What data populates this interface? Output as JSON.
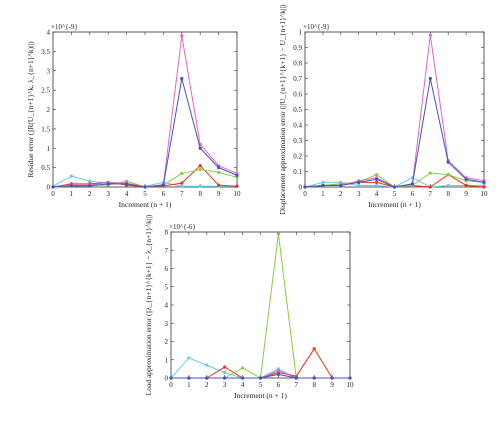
{
  "chart_data": [
    {
      "type": "line",
      "xlabel": "Increment (n + 1)",
      "ylabel": "Residue error (||R(U_{n+1}^k, λ_{n+1}^k)||)",
      "y_exponent": "×10^{-9}",
      "xlim": [
        0,
        10
      ],
      "ylim": [
        0,
        4
      ],
      "xticks": [
        "0",
        "1",
        "2",
        "3",
        "4",
        "5",
        "6",
        "7",
        "8",
        "9",
        "10"
      ],
      "yticks": [
        "0",
        "0.5",
        "1",
        "1.5",
        "2",
        "2.5",
        "3",
        "3.5",
        "4"
      ],
      "x": [
        0,
        1,
        2,
        3,
        4,
        5,
        6,
        7,
        8,
        9,
        10
      ],
      "series": [
        {
          "color": "#66ccee",
          "values": [
            0.02,
            0.28,
            0.15,
            0.1,
            0.08,
            0.02,
            0.12,
            0.02,
            0.02,
            0.02,
            0.02
          ]
        },
        {
          "color": "#ee3311",
          "values": [
            0.0,
            0.08,
            0.08,
            0.12,
            0.05,
            0.0,
            0.03,
            0.1,
            0.55,
            0.05,
            0.02
          ]
        },
        {
          "color": "#88cc44",
          "values": [
            0.0,
            0.02,
            0.05,
            0.05,
            0.15,
            0.0,
            0.05,
            0.35,
            0.45,
            0.38,
            0.25
          ]
        },
        {
          "color": "#dd66cc",
          "values": [
            0.0,
            0.05,
            0.05,
            0.12,
            0.1,
            0.0,
            0.06,
            3.9,
            1.1,
            0.55,
            0.35
          ]
        },
        {
          "color": "#4455bb",
          "values": [
            0.0,
            0.03,
            0.03,
            0.08,
            0.08,
            0.0,
            0.05,
            2.8,
            1.0,
            0.5,
            0.3
          ]
        }
      ]
    },
    {
      "type": "line",
      "xlabel": "Increment (n + 1)",
      "ylabel": "Displacement approximation error (||U_{n+1}^{k+1} − U_{n+1}^k||)",
      "y_exponent": "×10^{-9}",
      "xlim": [
        0,
        10
      ],
      "ylim": [
        0,
        1
      ],
      "xticks": [
        "0",
        "1",
        "2",
        "3",
        "4",
        "5",
        "6",
        "7",
        "8",
        "9",
        "10"
      ],
      "yticks": [
        "0",
        "0.1",
        "0.2",
        "0.3",
        "0.4",
        "0.5",
        "0.6",
        "0.7",
        "0.8",
        "0.9",
        "1"
      ],
      "x": [
        0,
        1,
        2,
        3,
        4,
        5,
        6,
        7,
        8,
        9,
        10
      ],
      "series": [
        {
          "color": "#66ccee",
          "values": [
            0.0,
            0.03,
            0.03,
            0.01,
            0.01,
            0.0,
            0.06,
            0.0,
            0.01,
            0.01,
            0.01
          ]
        },
        {
          "color": "#ee3311",
          "values": [
            0.0,
            0.01,
            0.02,
            0.03,
            0.03,
            0.0,
            0.01,
            0.0,
            0.08,
            0.01,
            0.0
          ]
        },
        {
          "color": "#88cc44",
          "values": [
            0.0,
            0.01,
            0.02,
            0.03,
            0.08,
            0.0,
            0.01,
            0.09,
            0.08,
            0.04,
            0.03
          ]
        },
        {
          "color": "#dd66cc",
          "values": [
            0.0,
            0.01,
            0.01,
            0.04,
            0.06,
            0.0,
            0.02,
            0.98,
            0.17,
            0.06,
            0.04
          ]
        },
        {
          "color": "#4455bb",
          "values": [
            0.0,
            0.01,
            0.01,
            0.03,
            0.05,
            0.0,
            0.02,
            0.7,
            0.16,
            0.05,
            0.03
          ]
        }
      ]
    },
    {
      "type": "line",
      "xlabel": "Increment (n + 1)",
      "ylabel": "Load approximation error (||λ_{n+1}^{k+1} − λ_{n+1}^k||)",
      "y_exponent": "×10^{-6}",
      "xlim": [
        0,
        10
      ],
      "ylim": [
        0,
        8
      ],
      "xticks": [
        "0",
        "1",
        "2",
        "3",
        "4",
        "5",
        "6",
        "7",
        "8",
        "9",
        "10"
      ],
      "yticks": [
        "0",
        "1",
        "2",
        "3",
        "4",
        "5",
        "6",
        "7",
        "8"
      ],
      "x": [
        0,
        1,
        2,
        3,
        4,
        5,
        6,
        7,
        8,
        9,
        10
      ],
      "series": [
        {
          "color": "#66ccee",
          "values": [
            0.0,
            1.1,
            0.7,
            0.3,
            0.0,
            0.0,
            0.5,
            0.0,
            0.0,
            0.0,
            0.0
          ]
        },
        {
          "color": "#ee3311",
          "values": [
            0.0,
            0.0,
            0.0,
            0.6,
            0.0,
            0.0,
            0.3,
            0.1,
            1.6,
            0.0,
            0.0
          ]
        },
        {
          "color": "#88cc44",
          "values": [
            0.0,
            0.0,
            0.0,
            0.0,
            0.55,
            0.0,
            7.9,
            0.0,
            0.0,
            0.0,
            0.0
          ]
        },
        {
          "color": "#dd66cc",
          "values": [
            0.0,
            0.0,
            0.0,
            0.0,
            0.0,
            0.0,
            0.4,
            0.0,
            0.0,
            0.0,
            0.0
          ]
        },
        {
          "color": "#4455bb",
          "values": [
            0.0,
            0.0,
            0.0,
            0.0,
            0.0,
            0.0,
            0.2,
            0.0,
            0.0,
            0.0,
            0.0
          ]
        }
      ]
    }
  ]
}
